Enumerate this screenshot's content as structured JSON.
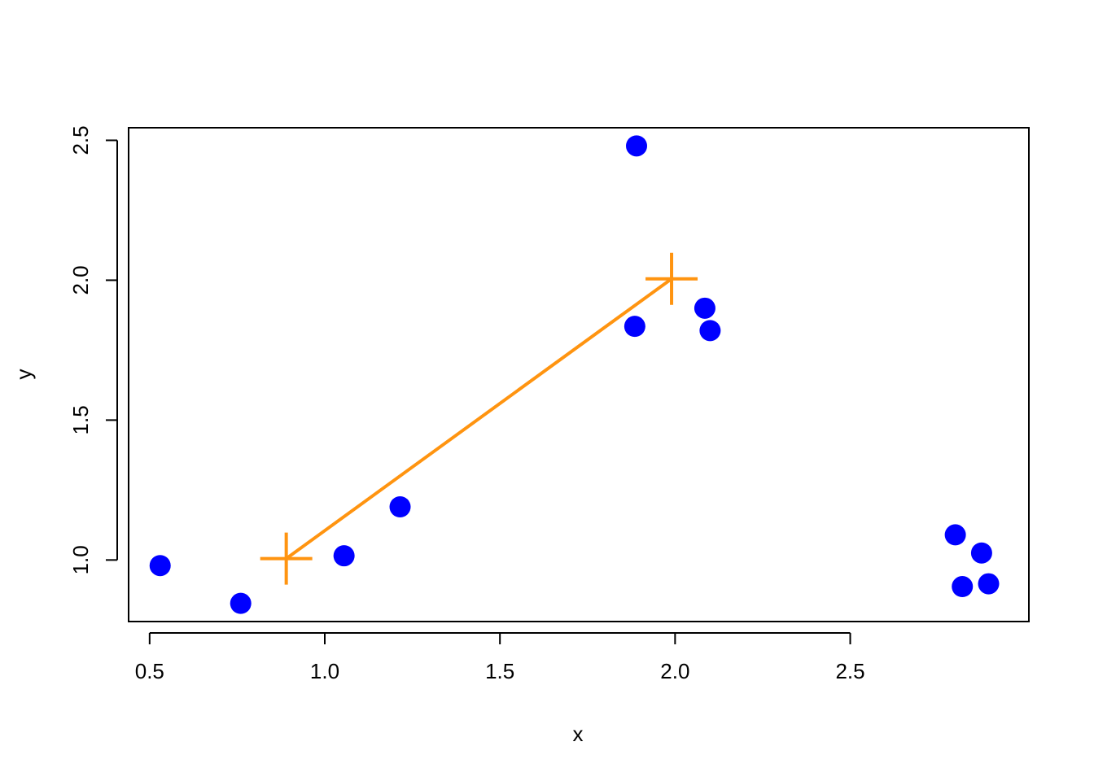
{
  "chart_data": {
    "type": "scatter",
    "title": "",
    "xlabel": "x",
    "ylabel": "y",
    "xlim": [
      0.44,
      3.01
    ],
    "ylim": [
      0.78,
      2.545
    ],
    "x_ticks": [
      0.5,
      1.0,
      1.5,
      2.0,
      2.5
    ],
    "x_tick_labels": [
      "0.5",
      "1.0",
      "1.5",
      "2.0",
      "2.5"
    ],
    "y_ticks": [
      1.0,
      1.5,
      2.0,
      2.5
    ],
    "y_tick_labels": [
      "1.0",
      "1.5",
      "2.0",
      "2.5"
    ],
    "grid": false,
    "series": [
      {
        "type": "scatter",
        "color": "#0000FF",
        "marker": "filled-circle",
        "x": [
          0.53,
          0.76,
          1.055,
          1.215,
          1.885,
          1.89,
          2.085,
          2.1,
          2.8,
          2.82,
          2.875,
          2.895
        ],
        "y": [
          0.98,
          0.845,
          1.015,
          1.19,
          1.835,
          2.48,
          1.9,
          1.82,
          1.09,
          0.905,
          1.025,
          0.915
        ]
      },
      {
        "type": "line",
        "color": "#FF9410",
        "marker": "plus",
        "x": [
          0.89,
          1.99
        ],
        "y": [
          1.005,
          2.005
        ]
      }
    ]
  }
}
